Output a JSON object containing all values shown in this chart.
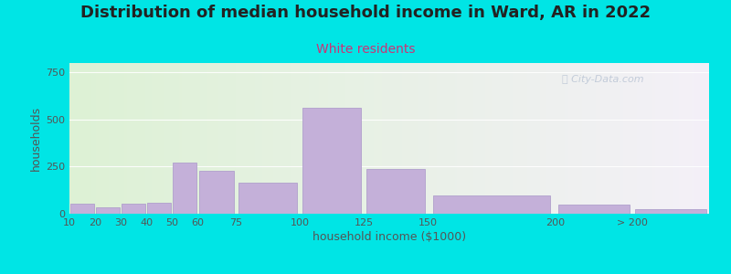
{
  "title": "Distribution of median household income in Ward, AR in 2022",
  "subtitle": "White residents",
  "xlabel": "household income ($1000)",
  "ylabel": "households",
  "bar_color": "#c4b0d9",
  "bar_edgecolor": "#b0a0cc",
  "background_outer": "#00e5e5",
  "background_inner_left": "#ddf2d5",
  "background_inner_right": "#f5f0f8",
  "bin_edges": [
    10,
    20,
    30,
    40,
    50,
    60,
    75,
    100,
    125,
    150,
    200,
    230,
    260
  ],
  "values": [
    55,
    35,
    55,
    60,
    270,
    230,
    165,
    560,
    240,
    95,
    50,
    25
  ],
  "xtick_positions": [
    10,
    20,
    30,
    40,
    50,
    60,
    75,
    100,
    125,
    150,
    200,
    230
  ],
  "xtick_labels": [
    "10",
    "20",
    "30",
    "40",
    "50",
    "60",
    "75",
    "100",
    "125",
    "150",
    "200",
    "> 200"
  ],
  "ylim": [
    0,
    800
  ],
  "xlim": [
    10,
    260
  ],
  "yticks": [
    0,
    250,
    500,
    750
  ],
  "title_fontsize": 13,
  "subtitle_fontsize": 10,
  "axis_label_fontsize": 9,
  "tick_fontsize": 8
}
